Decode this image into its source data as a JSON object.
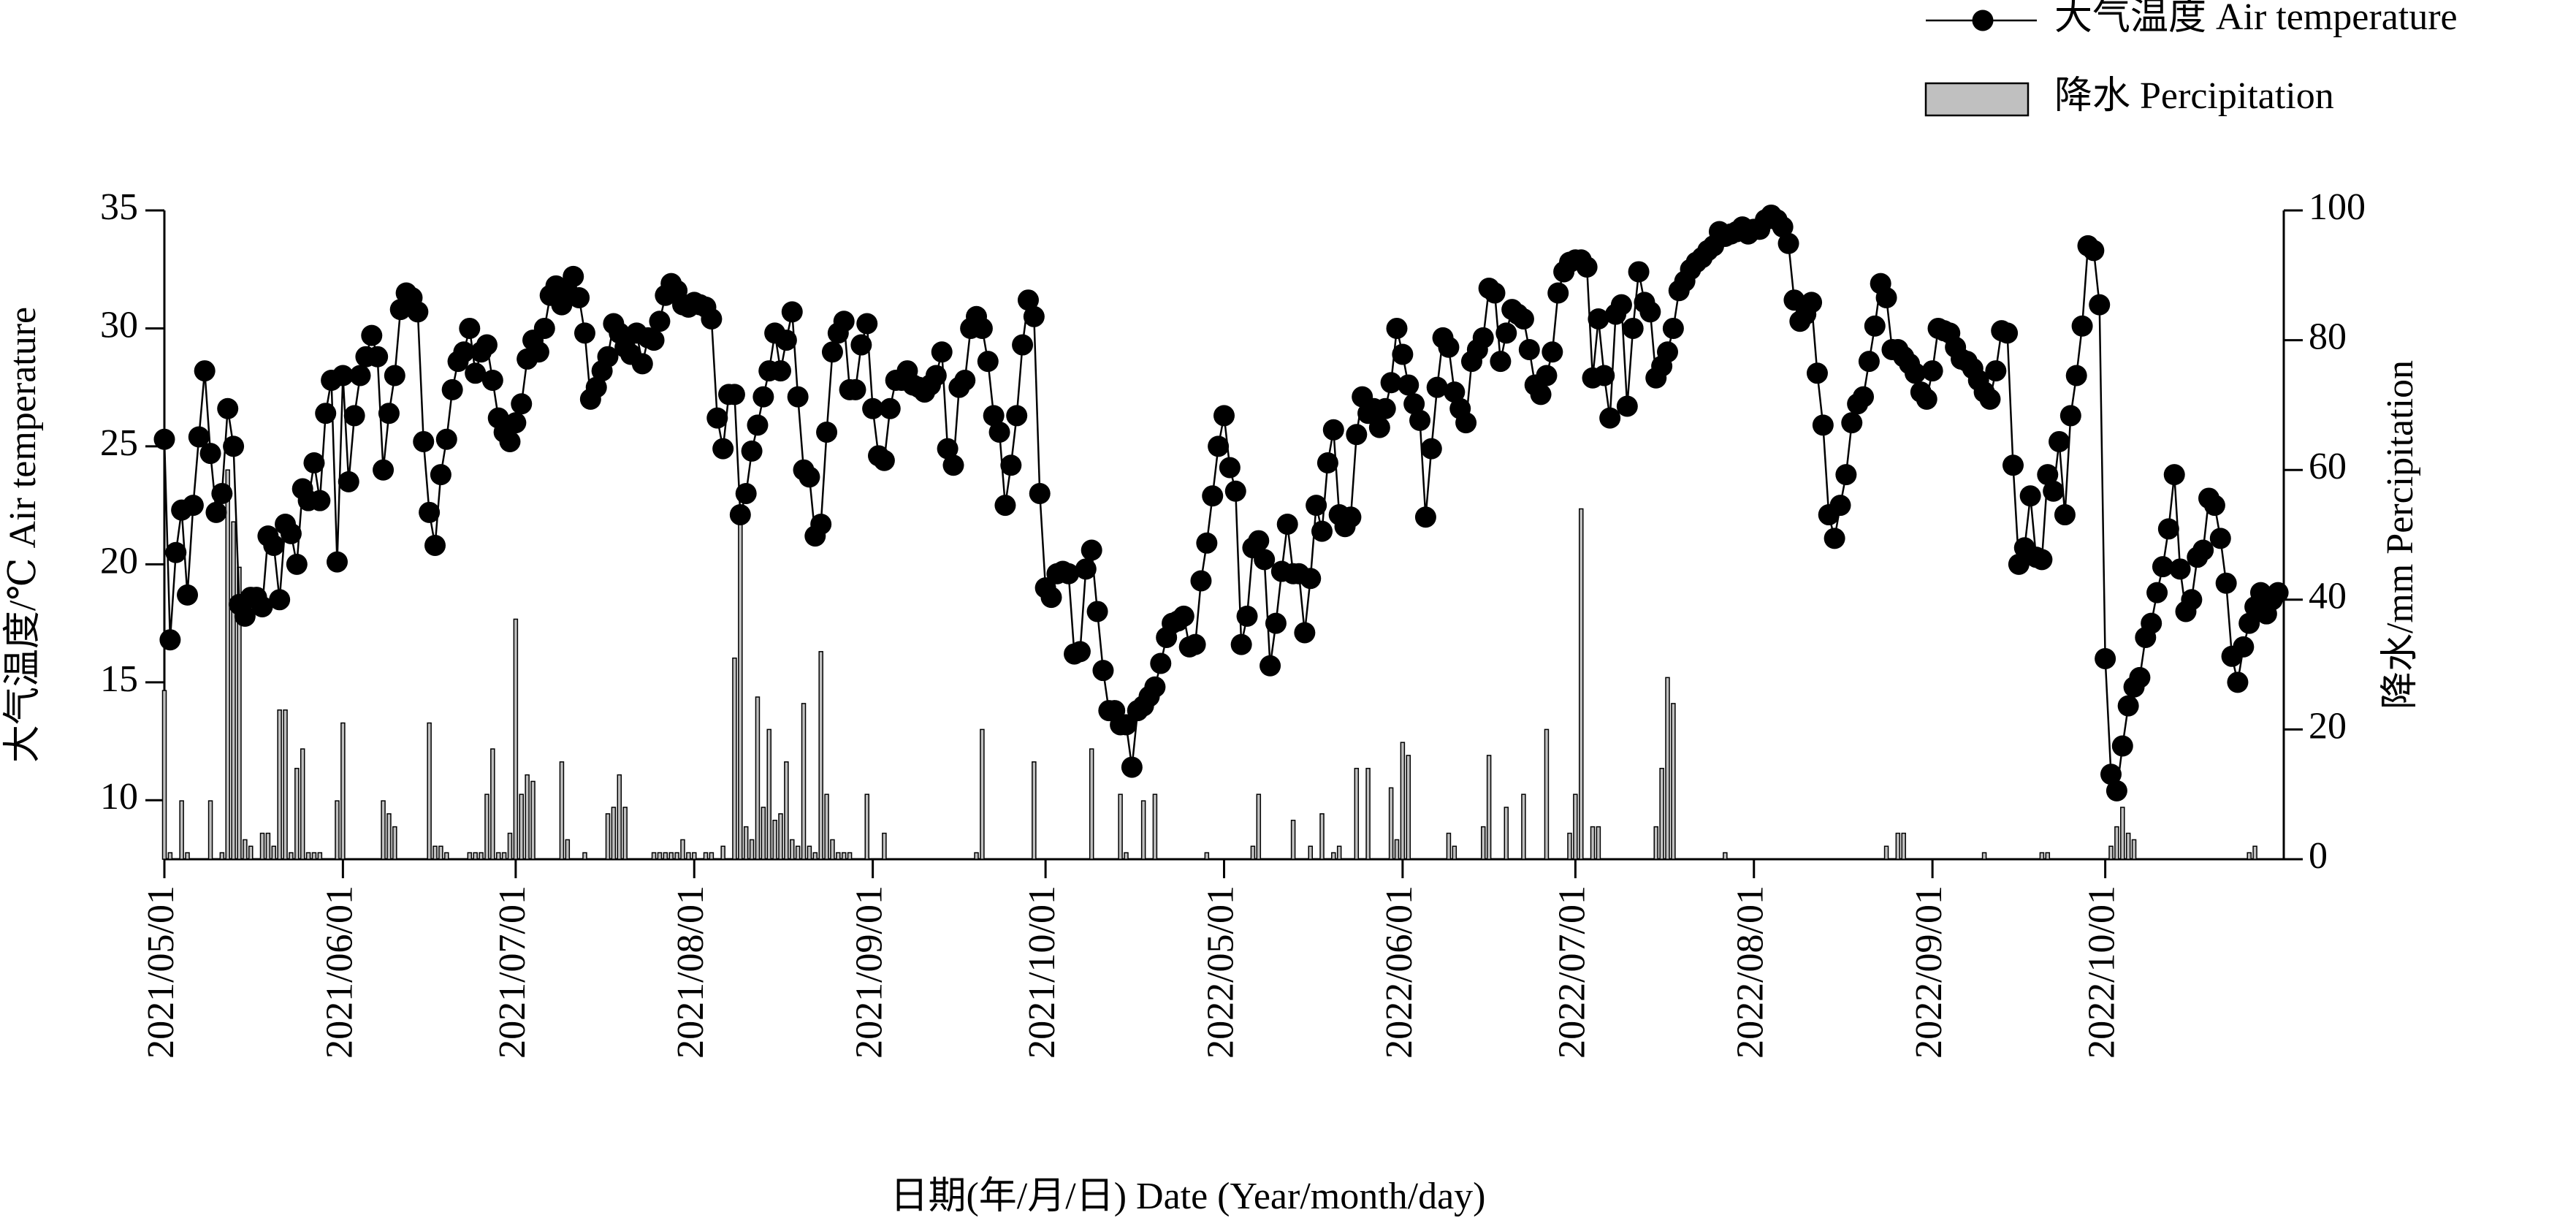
{
  "chart_data": {
    "type": "combo",
    "legend": "top-right",
    "xlabel": "日期(年/月/日)  Date (Year/month/day)",
    "ylabel": "大气温度/℃  Air temperature",
    "y2label": "降水/mm Percipitation",
    "ylim": [
      7.5,
      35
    ],
    "yticks": [
      10,
      15,
      20,
      25,
      30,
      35
    ],
    "y2lim": [
      0,
      100
    ],
    "y2ticks": [
      0,
      20,
      40,
      60,
      80,
      100
    ],
    "categories": [
      "2021/05/01",
      null,
      null,
      null,
      null,
      null,
      null,
      null,
      null,
      null,
      null,
      null,
      null,
      null,
      null,
      null,
      null,
      null,
      null,
      null,
      null,
      null,
      null,
      null,
      null,
      null,
      null,
      null,
      null,
      null,
      null,
      "2021/06/01",
      null,
      null,
      null,
      null,
      null,
      null,
      null,
      null,
      null,
      null,
      null,
      null,
      null,
      null,
      null,
      null,
      null,
      null,
      null,
      null,
      null,
      null,
      null,
      null,
      null,
      null,
      null,
      null,
      null,
      "2021/07/01",
      null,
      null,
      null,
      null,
      null,
      null,
      null,
      null,
      null,
      null,
      null,
      null,
      null,
      null,
      null,
      null,
      null,
      null,
      null,
      null,
      null,
      null,
      null,
      null,
      null,
      null,
      null,
      null,
      null,
      null,
      "2021/08/01",
      null,
      null,
      null,
      null,
      null,
      null,
      null,
      null,
      null,
      null,
      null,
      null,
      null,
      null,
      null,
      null,
      null,
      null,
      null,
      null,
      null,
      null,
      null,
      null,
      null,
      null,
      null,
      null,
      null,
      null,
      "2021/09/01",
      null,
      null,
      null,
      null,
      null,
      null,
      null,
      null,
      null,
      null,
      null,
      null,
      null,
      null,
      null,
      null,
      null,
      null,
      null,
      null,
      null,
      null,
      null,
      null,
      null,
      null,
      null,
      null,
      null,
      "2021/10/01",
      null,
      null,
      null,
      null,
      null,
      null,
      null,
      null,
      null,
      null,
      null,
      null,
      null,
      null,
      null,
      null,
      null,
      null,
      null,
      null,
      null,
      null,
      null,
      null,
      null,
      null,
      null,
      null,
      null,
      null,
      "2022/05/01",
      null,
      null,
      null,
      null,
      null,
      null,
      null,
      null,
      null,
      null,
      null,
      null,
      null,
      null,
      null,
      null,
      null,
      null,
      null,
      null,
      null,
      null,
      null,
      null,
      null,
      null,
      null,
      null,
      null,
      null,
      "2022/06/01",
      null,
      null,
      null,
      null,
      null,
      null,
      null,
      null,
      null,
      null,
      null,
      null,
      null,
      null,
      null,
      null,
      null,
      null,
      null,
      null,
      null,
      null,
      null,
      null,
      null,
      null,
      null,
      null,
      null,
      "2022/07/01",
      null,
      null,
      null,
      null,
      null,
      null,
      null,
      null,
      null,
      null,
      null,
      null,
      null,
      null,
      null,
      null,
      null,
      null,
      null,
      null,
      null,
      null,
      null,
      null,
      null,
      null,
      null,
      null,
      null,
      null,
      "2022/08/01",
      null,
      null,
      null,
      null,
      null,
      null,
      null,
      null,
      null,
      null,
      null,
      null,
      null,
      null,
      null,
      null,
      null,
      null,
      null,
      null,
      null,
      null,
      null,
      null,
      null,
      null,
      null,
      null,
      null,
      null,
      "2022/09/01",
      null,
      null,
      null,
      null,
      null,
      null,
      null,
      null,
      null,
      null,
      null,
      null,
      null,
      null,
      null,
      null,
      null,
      null,
      null,
      null,
      null,
      null,
      null,
      null,
      null,
      null,
      null,
      null,
      null,
      "2022/10/01",
      null,
      null,
      null,
      null,
      null,
      null,
      null,
      null,
      null,
      null,
      null,
      null,
      null,
      null,
      null,
      null,
      null,
      null,
      null,
      null,
      null,
      null,
      null,
      null,
      null,
      null,
      null,
      null,
      null,
      null
    ],
    "series": [
      {
        "name": "降水 Percipitation",
        "type": "bar",
        "axis": "y2",
        "color": "#c0c0c0",
        "values": [
          26,
          1,
          0,
          9,
          1,
          0,
          0,
          0,
          9,
          0,
          1,
          60,
          52,
          45,
          3,
          2,
          0,
          4,
          4,
          2,
          23,
          23,
          1,
          14,
          17,
          1,
          1,
          1,
          0,
          0,
          9,
          21,
          0,
          0,
          0,
          0,
          0,
          0,
          9,
          7,
          5,
          0,
          0,
          0,
          0,
          0,
          21,
          2,
          2,
          1,
          0,
          0,
          0,
          1,
          1,
          1,
          10,
          17,
          1,
          1,
          4,
          37,
          10,
          13,
          12,
          0,
          0,
          0,
          0,
          15,
          3,
          0,
          0,
          1,
          0,
          0,
          0,
          7,
          8,
          13,
          8,
          0,
          0,
          0,
          0,
          1,
          1,
          1,
          1,
          1,
          3,
          1,
          1,
          0,
          1,
          1,
          0,
          2,
          0,
          31,
          54,
          5,
          3,
          25,
          8,
          20,
          6,
          7,
          15,
          3,
          2,
          24,
          2,
          1,
          32,
          10,
          3,
          1,
          1,
          1,
          0,
          0,
          10,
          0,
          0,
          4,
          0,
          0,
          0,
          0,
          0,
          0,
          0,
          0,
          0,
          0,
          0,
          0,
          0,
          0,
          0,
          1,
          20,
          0,
          0,
          0,
          0,
          0,
          0,
          0,
          0,
          15,
          0,
          0,
          0,
          0,
          0,
          0,
          0,
          0,
          0,
          17,
          0,
          0,
          0,
          0,
          10,
          1,
          0,
          0,
          9,
          0,
          10,
          0,
          0,
          0,
          0,
          0,
          0,
          0,
          0,
          1,
          0,
          0,
          0,
          0,
          0,
          0,
          0,
          2,
          10,
          0,
          0,
          0,
          0,
          0,
          6,
          0,
          0,
          2,
          0,
          7,
          0,
          1,
          2,
          0,
          0,
          14,
          0,
          14,
          0,
          0,
          0,
          11,
          3,
          18,
          16,
          0,
          0,
          0,
          0,
          0,
          0,
          4,
          2,
          0,
          0,
          0,
          0,
          5,
          16,
          0,
          0,
          8,
          0,
          0,
          10,
          0,
          0,
          0,
          20,
          0,
          0,
          0,
          4,
          10,
          54,
          0,
          5,
          5,
          0,
          0,
          0,
          0,
          0,
          0,
          0,
          0,
          0,
          5,
          14,
          28,
          24,
          0,
          0,
          0,
          0,
          0,
          0,
          0,
          0,
          1,
          0,
          0,
          0,
          0,
          0,
          0,
          0,
          0,
          0,
          0,
          0,
          0,
          0,
          0,
          0,
          0,
          0,
          0,
          0,
          0,
          0,
          0,
          0,
          0,
          0,
          0,
          0,
          2,
          0,
          4,
          4,
          0,
          0,
          0,
          0,
          0,
          0,
          0,
          0,
          0,
          0,
          0,
          0,
          0,
          1,
          0,
          0,
          0,
          0,
          0,
          0,
          0,
          0,
          0,
          1,
          1,
          0,
          0,
          0,
          0,
          0,
          0,
          0,
          0,
          0,
          0,
          2,
          5,
          8,
          4,
          3,
          0,
          0,
          0,
          0,
          0,
          0,
          0,
          0,
          0,
          0,
          0,
          0,
          0,
          0,
          0,
          0,
          0,
          0,
          0,
          1,
          2,
          0,
          0,
          0,
          0
        ]
      },
      {
        "name": "大气温度 Air temperature",
        "type": "line",
        "axis": "y",
        "color": "#000000",
        "values": [
          25.3,
          16.8,
          20.5,
          22.3,
          18.7,
          22.5,
          25.4,
          28.2,
          24.7,
          22.2,
          23,
          26.6,
          25,
          18.3,
          17.8,
          18.6,
          18.6,
          18.2,
          21.2,
          20.8,
          18.5,
          21.7,
          21.3,
          20,
          23.2,
          22.7,
          24.3,
          22.7,
          26.4,
          27.8,
          20.1,
          28,
          23.5,
          26.3,
          28,
          28.8,
          29.7,
          28.8,
          24,
          26.4,
          28,
          30.8,
          31.5,
          31.3,
          30.7,
          25.2,
          22.2,
          20.8,
          23.8,
          25.3,
          27.4,
          28.6,
          29,
          30,
          28.1,
          29,
          29.3,
          27.8,
          26.2,
          25.6,
          25.2,
          26,
          26.8,
          28.7,
          29.5,
          29,
          30,
          31.4,
          31.8,
          31,
          31.5,
          32.2,
          31.3,
          29.8,
          27,
          27.5,
          28.2,
          28.8,
          30.2,
          29.8,
          29.2,
          28.9,
          29.8,
          28.5,
          29.6,
          29.5,
          30.3,
          31.4,
          31.9,
          31.6,
          31,
          30.9,
          31.1,
          31,
          30.9,
          30.4,
          26.2,
          24.9,
          27.2,
          27.2,
          22.1,
          23,
          24.8,
          25.9,
          27.1,
          28.2,
          29.8,
          28.2,
          29.5,
          30.7,
          27.1,
          24,
          23.7,
          21.2,
          21.7,
          25.6,
          29,
          29.8,
          30.3,
          27.4,
          27.4,
          29.3,
          30.2,
          26.6,
          24.6,
          24.4,
          26.6,
          27.8,
          27.8,
          28.2,
          27.6,
          27.5,
          27.3,
          27.6,
          28,
          29,
          24.9,
          24.2,
          27.5,
          27.8,
          30,
          30.5,
          30,
          28.6,
          26.3,
          25.6,
          22.5,
          24.2,
          26.3,
          29.3,
          31.2,
          30.5,
          23,
          19,
          18.6,
          19.6,
          19.7,
          19.6,
          16.2,
          16.3,
          19.8,
          20.6,
          18,
          15.5,
          13.8,
          13.8,
          13.2,
          13.2,
          11.4,
          13.8,
          14,
          14.4,
          14.8,
          15.8,
          16.9,
          17.5,
          17.6,
          17.8,
          16.5,
          16.6,
          19.3,
          20.9,
          22.9,
          25,
          26.3,
          24.1,
          23.1,
          16.6,
          17.8,
          20.7,
          21,
          20.2,
          15.7,
          17.5,
          19.7,
          21.7,
          19.6,
          19.6,
          17.1,
          19.4,
          22.5,
          21.4,
          24.3,
          25.7,
          22.1,
          21.6,
          22,
          25.5,
          27.1,
          26.4,
          26.6,
          25.8,
          26.6,
          27.7,
          30,
          28.9,
          27.6,
          26.8,
          26.1,
          22,
          24.9,
          27.5,
          29.6,
          29.2,
          27.3,
          26.6,
          26,
          28.6,
          29.1,
          29.6,
          31.7,
          31.5,
          28.6,
          29.8,
          30.8,
          30.6,
          30.4,
          29.1,
          27.6,
          27.2,
          28,
          29,
          31.5,
          32.4,
          32.8,
          32.9,
          32.9,
          32.6,
          27.9,
          30.4,
          28,
          26.2,
          30.6,
          31,
          26.7,
          30,
          32.4,
          31.1,
          30.7,
          27.9,
          28.4,
          29,
          30,
          31.6,
          32,
          32.5,
          32.8,
          33,
          33.3,
          33.5,
          34.1,
          33.9,
          34,
          34.1,
          34.3,
          34,
          34.2,
          34.2,
          34.6,
          34.8,
          34.6,
          34.3,
          33.6,
          31.2,
          30.3,
          30.6,
          31.1,
          28.1,
          25.9,
          22.1,
          21.1,
          22.5,
          23.8,
          26,
          26.8,
          27.1,
          28.6,
          30.1,
          31.9,
          31.3,
          29.1,
          29.1,
          28.8,
          28.5,
          28.1,
          27.3,
          27,
          28.2,
          30,
          29.9,
          29.8,
          29.2,
          28.7,
          28.6,
          28.3,
          27.8,
          27.3,
          27,
          28.2,
          29.9,
          29.8,
          24.2,
          20,
          20.7,
          22.9,
          20.3,
          20.2,
          23.8,
          23.1,
          25.2,
          22.1,
          26.3,
          28,
          30.1,
          33.5,
          33.3,
          31,
          16,
          11.1,
          10.4,
          12.3,
          14,
          14.8,
          15.2,
          16.9,
          17.5,
          18.8,
          19.9,
          21.5,
          23.8,
          19.8,
          18,
          18.5,
          20.3,
          20.6,
          22.8,
          22.5,
          21.1,
          19.2,
          16.1,
          15,
          16.5,
          17.5,
          18.2,
          18.8,
          17.9,
          18.5,
          18.8
        ]
      }
    ]
  }
}
